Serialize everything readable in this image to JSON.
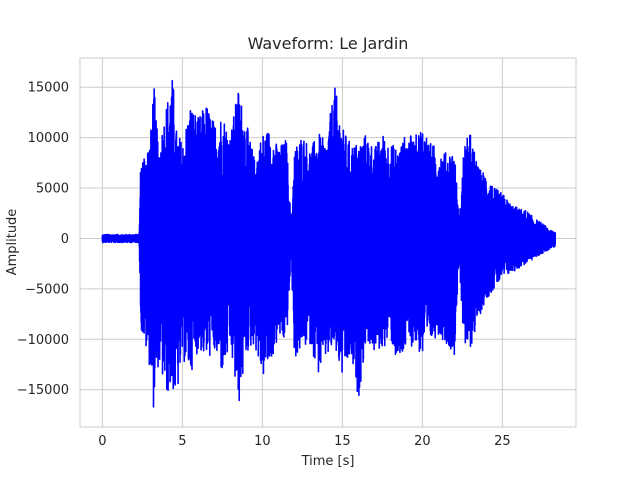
{
  "chart_data": {
    "type": "line",
    "title": "Waveform: Le Jardin",
    "xlabel": "Time [s]",
    "ylabel": "Amplitude",
    "xlim": [
      -1.4,
      29.6
    ],
    "ylim": [
      -18700,
      17900
    ],
    "xticks": [
      0,
      5,
      10,
      15,
      20,
      25
    ],
    "yticks": [
      -15000,
      -10000,
      -5000,
      0,
      5000,
      10000,
      15000
    ],
    "xtick_labels": [
      "0",
      "5",
      "10",
      "15",
      "20",
      "25"
    ],
    "ytick_labels": [
      "−15000",
      "−10000",
      "−5000",
      "0",
      "5000",
      "10000",
      "15000"
    ],
    "grid": true,
    "series": [
      {
        "color": "#0000ff",
        "envelope": {
          "t": [
            0,
            2.3,
            2.4,
            3.0,
            3.2,
            3.5,
            4.0,
            4.4,
            4.6,
            5.0,
            5.5,
            6.0,
            6.5,
            7.0,
            7.5,
            8.0,
            8.5,
            9.0,
            9.5,
            10.0,
            10.5,
            11.0,
            11.5,
            11.8,
            12.0,
            12.5,
            13.0,
            13.5,
            14.0,
            14.5,
            15.0,
            15.5,
            16.0,
            16.5,
            17.0,
            17.5,
            18.0,
            18.5,
            19.0,
            19.5,
            20.0,
            20.5,
            21.0,
            21.5,
            22.0,
            22.3,
            22.6,
            23.0,
            23.5,
            24.0,
            24.5,
            25.0,
            25.5,
            26.0,
            26.5,
            27.0,
            27.5,
            28.0,
            28.3
          ],
          "upper": [
            400,
            400,
            8000,
            10000,
            15800,
            9000,
            13500,
            16200,
            11000,
            9500,
            13500,
            12000,
            13500,
            11500,
            12500,
            10500,
            15000,
            11500,
            8000,
            10500,
            11000,
            9000,
            10000,
            1500,
            9000,
            10500,
            9000,
            10500,
            9500,
            15300,
            11000,
            9500,
            9500,
            10500,
            9000,
            10500,
            9500,
            9000,
            10500,
            10000,
            11500,
            9500,
            9000,
            8500,
            9000,
            1500,
            9500,
            10500,
            7000,
            6500,
            5000,
            4500,
            3500,
            3000,
            2800,
            2000,
            1500,
            800,
            700
          ],
          "lower": [
            -400,
            -400,
            -9000,
            -13000,
            -17000,
            -12500,
            -15500,
            -15000,
            -16400,
            -12000,
            -13500,
            -11000,
            -12000,
            -11500,
            -13500,
            -11000,
            -17000,
            -11500,
            -10500,
            -14000,
            -12500,
            -10000,
            -10500,
            -2000,
            -12000,
            -11000,
            -10500,
            -13500,
            -12000,
            -11000,
            -14000,
            -12000,
            -16000,
            -10000,
            -11500,
            -11000,
            -10000,
            -13000,
            -11000,
            -10500,
            -12000,
            -10500,
            -9500,
            -10500,
            -11500,
            -2000,
            -11500,
            -11000,
            -8000,
            -6000,
            -5000,
            -4000,
            -3500,
            -3000,
            -2500,
            -2000,
            -1500,
            -1000,
            -800
          ]
        }
      }
    ]
  }
}
